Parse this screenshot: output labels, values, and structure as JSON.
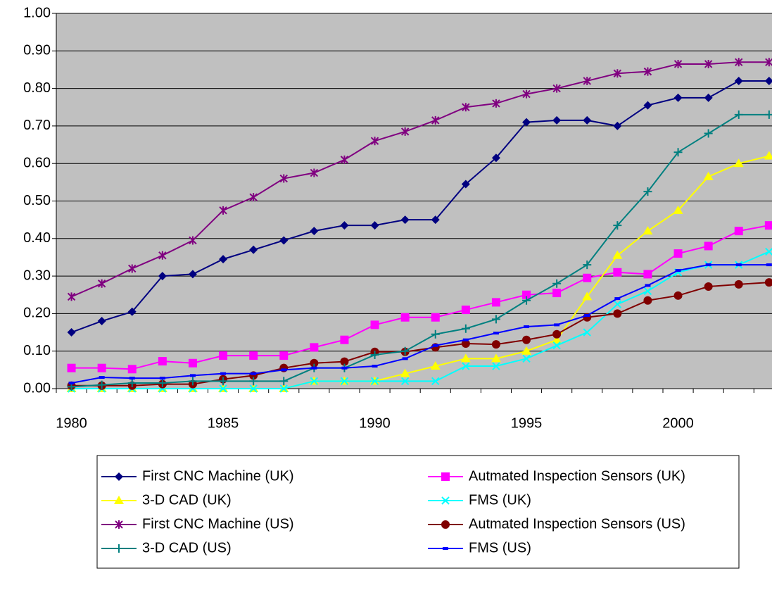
{
  "chart_data": {
    "type": "line",
    "categories": [
      "1980",
      null,
      null,
      null,
      null,
      "1985",
      null,
      null,
      null,
      null,
      "1990",
      null,
      null,
      null,
      null,
      "1995",
      null,
      null,
      null,
      null,
      "2000",
      null,
      null,
      null
    ],
    "ylim": [
      0,
      1
    ],
    "yticks": [
      {
        "value": 0,
        "label": "0.00"
      },
      {
        "value": 0.1,
        "label": "0.10"
      },
      {
        "value": 0.2,
        "label": "0.20"
      },
      {
        "value": 0.3,
        "label": "0.30"
      },
      {
        "value": 0.4,
        "label": "0.40"
      },
      {
        "value": 0.5,
        "label": "0.50"
      },
      {
        "value": 0.6,
        "label": "0.60"
      },
      {
        "value": 0.7,
        "label": "0.70"
      },
      {
        "value": 0.8,
        "label": "0.80"
      },
      {
        "value": 0.9,
        "label": "0.90"
      },
      {
        "value": 1,
        "label": "1.00"
      }
    ],
    "grid": true,
    "legend": "bottom",
    "series": [
      {
        "name": "First CNC Machine (UK)",
        "color": "#000080",
        "marker": "diamond",
        "values": [
          0.15,
          0.18,
          0.205,
          0.3,
          0.305,
          0.345,
          0.37,
          0.395,
          0.42,
          0.435,
          0.435,
          0.45,
          0.45,
          0.545,
          0.615,
          0.71,
          0.715,
          0.715,
          0.7,
          0.755,
          0.775,
          0.775,
          0.82,
          0.82
        ]
      },
      {
        "name": "Autmated Inspection Sensors (UK)",
        "color": "#ff00ff",
        "marker": "square",
        "values": [
          0.055,
          0.055,
          0.052,
          0.073,
          0.068,
          0.088,
          0.088,
          0.088,
          0.11,
          0.13,
          0.17,
          0.19,
          0.19,
          0.21,
          0.23,
          0.25,
          0.255,
          0.295,
          0.31,
          0.305,
          0.36,
          0.38,
          0.42,
          0.435
        ]
      },
      {
        "name": "3-D CAD (UK)",
        "color": "#ffff00",
        "marker": "triangle",
        "values": [
          0,
          0,
          0,
          0,
          0,
          0,
          0,
          0,
          0.02,
          0.02,
          0.02,
          0.04,
          0.06,
          0.08,
          0.08,
          0.1,
          0.13,
          0.245,
          0.355,
          0.42,
          0.475,
          0.565,
          0.6,
          0.62
        ]
      },
      {
        "name": "FMS (UK)",
        "color": "#00ffff",
        "marker": "x",
        "values": [
          0,
          0,
          0,
          0,
          0,
          0,
          0,
          0,
          0.02,
          0.02,
          0.02,
          0.02,
          0.02,
          0.06,
          0.06,
          0.08,
          0.115,
          0.15,
          0.225,
          0.26,
          0.31,
          0.33,
          0.33,
          0.365
        ]
      },
      {
        "name": "First CNC Machine (US)",
        "color": "#800080",
        "marker": "star",
        "values": [
          0.245,
          0.28,
          0.32,
          0.355,
          0.395,
          0.475,
          0.51,
          0.56,
          0.575,
          0.61,
          0.66,
          0.685,
          0.715,
          0.75,
          0.76,
          0.785,
          0.8,
          0.82,
          0.84,
          0.845,
          0.865,
          0.865,
          0.87,
          0.87
        ]
      },
      {
        "name": "Autmated Inspection Sensors (US)",
        "color": "#800000",
        "marker": "circle",
        "values": [
          0.008,
          0.008,
          0.008,
          0.012,
          0.012,
          0.025,
          0.035,
          0.055,
          0.068,
          0.072,
          0.098,
          0.098,
          0.11,
          0.12,
          0.118,
          0.13,
          0.145,
          0.19,
          0.2,
          0.235,
          0.248,
          0.272,
          0.278,
          0.283
        ]
      },
      {
        "name": "3-D CAD (US)",
        "color": "#008080",
        "marker": "plus",
        "values": [
          0.005,
          0.01,
          0.015,
          0.015,
          0.02,
          0.02,
          0.02,
          0.02,
          0.055,
          0.055,
          0.09,
          0.1,
          0.145,
          0.16,
          0.185,
          0.235,
          0.28,
          0.33,
          0.435,
          0.525,
          0.63,
          0.68,
          0.73,
          0.73
        ]
      },
      {
        "name": "FMS (US)",
        "color": "#0000ff",
        "marker": "dash",
        "values": [
          0.015,
          0.03,
          0.028,
          0.028,
          0.035,
          0.04,
          0.04,
          0.05,
          0.055,
          0.055,
          0.06,
          0.08,
          0.115,
          0.13,
          0.148,
          0.165,
          0.17,
          0.195,
          0.24,
          0.275,
          0.315,
          0.33,
          0.33,
          0.33
        ]
      }
    ]
  }
}
